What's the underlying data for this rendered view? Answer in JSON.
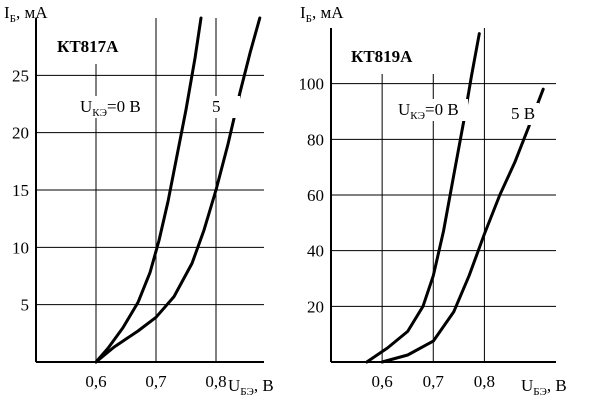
{
  "colors": {
    "line": "#000000",
    "grid": "#000000",
    "background": "#ffffff"
  },
  "chart_data": [
    {
      "type": "line",
      "title": "КТ817А",
      "ylabel": {
        "main": "I",
        "sub": "Б",
        "unit": ", мА"
      },
      "xlabel": {
        "main": "U",
        "sub": "БЭ",
        "unit": ", В"
      },
      "xlim": [
        0.5,
        0.88
      ],
      "ylim": [
        0,
        30
      ],
      "x_tick_labels": [
        {
          "value": 0.6,
          "label": "0,6"
        },
        {
          "value": 0.7,
          "label": "0,7"
        },
        {
          "value": 0.8,
          "label": "0,8"
        }
      ],
      "y_tick_labels": [
        {
          "value": 5,
          "label": "5"
        },
        {
          "value": 10,
          "label": "10"
        },
        {
          "value": 15,
          "label": "15"
        },
        {
          "value": 20,
          "label": "20"
        },
        {
          "value": 25,
          "label": "25"
        }
      ],
      "grid": true,
      "series": [
        {
          "label": {
            "main": "U",
            "sub": "КЭ",
            "rest": "=0 В"
          },
          "x": [
            0.6,
            0.62,
            0.645,
            0.67,
            0.69,
            0.705,
            0.72,
            0.735,
            0.75,
            0.765,
            0.775
          ],
          "y": [
            0,
            1.2,
            3,
            5.2,
            7.8,
            10.6,
            14,
            18,
            22,
            26.5,
            30
          ]
        },
        {
          "label": {
            "main": "5",
            "sub": "",
            "rest": ""
          },
          "x": [
            0.6,
            0.63,
            0.67,
            0.7,
            0.73,
            0.76,
            0.78,
            0.8,
            0.82,
            0.84,
            0.857,
            0.873
          ],
          "y": [
            0,
            1.3,
            2.7,
            3.9,
            5.7,
            8.6,
            11.5,
            15,
            19,
            23.5,
            27,
            30
          ]
        }
      ]
    },
    {
      "type": "line",
      "title": "КТ819А",
      "ylabel": {
        "main": "I",
        "sub": "Б",
        "unit": ", мА"
      },
      "xlabel": {
        "main": "U",
        "sub": "БЭ",
        "unit": ", В"
      },
      "xlim": [
        0.5,
        0.94
      ],
      "ylim": [
        0,
        120
      ],
      "x_tick_labels": [
        {
          "value": 0.6,
          "label": "0,6"
        },
        {
          "value": 0.7,
          "label": "0,7"
        },
        {
          "value": 0.8,
          "label": "0,8"
        }
      ],
      "y_tick_labels": [
        {
          "value": 20,
          "label": "20"
        },
        {
          "value": 40,
          "label": "40"
        },
        {
          "value": 60,
          "label": "60"
        },
        {
          "value": 80,
          "label": "80"
        },
        {
          "value": 100,
          "label": "100"
        }
      ],
      "grid": true,
      "series": [
        {
          "label": {
            "main": "U",
            "sub": "КЭ",
            "rest": "=0 В"
          },
          "x": [
            0.57,
            0.61,
            0.65,
            0.68,
            0.7,
            0.72,
            0.74,
            0.76,
            0.775,
            0.79
          ],
          "y": [
            0,
            5,
            11,
            20,
            31,
            47,
            67,
            87,
            103,
            118
          ]
        },
        {
          "label": {
            "main": "5 В",
            "sub": "",
            "rest": ""
          },
          "x": [
            0.6,
            0.65,
            0.7,
            0.74,
            0.77,
            0.8,
            0.83,
            0.86,
            0.89,
            0.915
          ],
          "y": [
            0,
            2.5,
            7.5,
            18,
            31,
            46,
            60,
            72,
            86,
            98
          ]
        }
      ]
    }
  ]
}
